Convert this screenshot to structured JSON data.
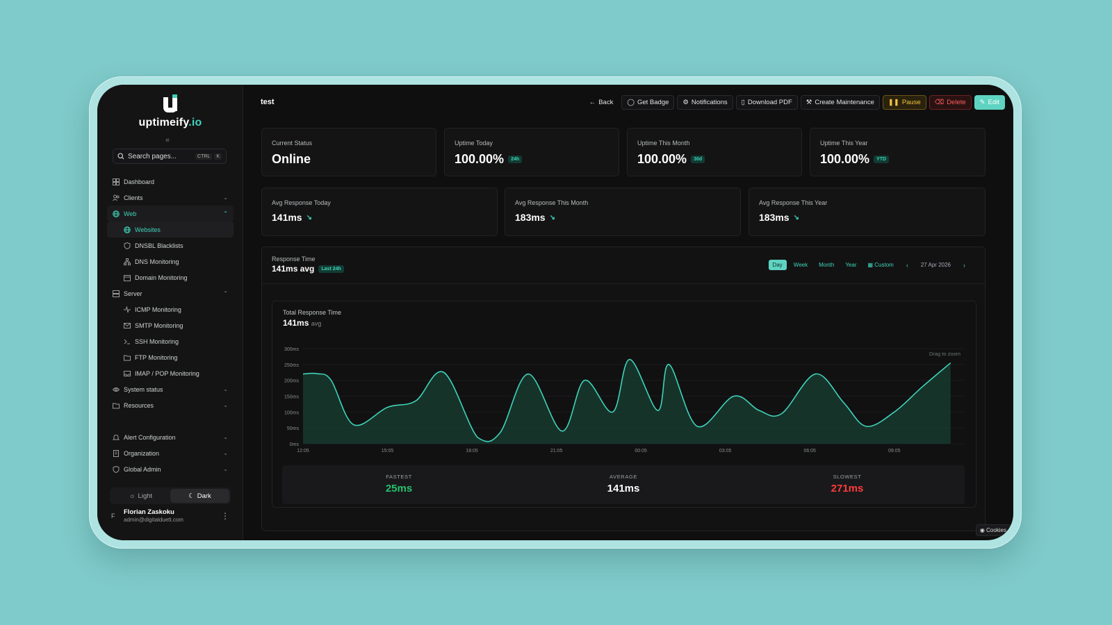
{
  "brand": {
    "name": "uptimeify",
    "tld": ".io"
  },
  "sidebar": {
    "collapse_glyph": "«",
    "search": {
      "placeholder": "Search pages...",
      "kbd1": "CTRL",
      "kbd2": "K"
    },
    "items": [
      {
        "label": "Dashboard",
        "icon": "dashboard-icon"
      },
      {
        "label": "Clients",
        "icon": "users-icon"
      },
      {
        "label": "Web",
        "icon": "globe-icon"
      },
      {
        "label": "Websites",
        "icon": "globe-icon"
      },
      {
        "label": "DNSBL Blacklists",
        "icon": "shield-icon"
      },
      {
        "label": "DNS Monitoring",
        "icon": "network-icon"
      },
      {
        "label": "Domain Monitoring",
        "icon": "calendar-icon"
      },
      {
        "label": "Server",
        "icon": "server-icon"
      },
      {
        "label": "ICMP Monitoring",
        "icon": "pulse-icon"
      },
      {
        "label": "SMTP Monitoring",
        "icon": "mail-icon"
      },
      {
        "label": "SSH Monitoring",
        "icon": "terminal-icon"
      },
      {
        "label": "FTP Monitoring",
        "icon": "folder-icon"
      },
      {
        "label": "IMAP / POP Monitoring",
        "icon": "inbox-icon"
      },
      {
        "label": "System status",
        "icon": "eye-icon"
      },
      {
        "label": "Resources",
        "icon": "folder-icon"
      },
      {
        "label": "Alert Configuration",
        "icon": "bell-icon"
      },
      {
        "label": "Organization",
        "icon": "building-icon"
      },
      {
        "label": "Global Admin",
        "icon": "shield-icon"
      }
    ],
    "theme": {
      "light": "Light",
      "dark": "Dark"
    },
    "user": {
      "initial": "F",
      "name": "Florian Zaskoku",
      "email": "admin@digitalduett.com"
    }
  },
  "header": {
    "title": "test",
    "buttons": {
      "back": "Back",
      "badge": "Get Badge",
      "notifications": "Notifications",
      "pdf": "Download PDF",
      "maintenance": "Create Maintenance",
      "pause": "Pause",
      "delete": "Delete",
      "edit": "Edit"
    }
  },
  "status_cards": [
    {
      "label": "Current Status",
      "value": "Online",
      "badge": ""
    },
    {
      "label": "Uptime Today",
      "value": "100.00%",
      "badge": "24h"
    },
    {
      "label": "Uptime This Month",
      "value": "100.00%",
      "badge": "30d"
    },
    {
      "label": "Uptime This Year",
      "value": "100.00%",
      "badge": "YTD"
    }
  ],
  "response_cards": [
    {
      "label": "Avg Response Today",
      "value": "141ms"
    },
    {
      "label": "Avg Response This Month",
      "value": "183ms"
    },
    {
      "label": "Avg Response This Year",
      "value": "183ms"
    }
  ],
  "response_time": {
    "label": "Response Time",
    "value": "141ms avg",
    "badge": "Last 24h",
    "ranges": [
      "Day",
      "Week",
      "Month",
      "Year",
      "Custom"
    ],
    "active_range": "Day",
    "date": "27 Apr 2026"
  },
  "chart_panel": {
    "title": "Total Response Time",
    "value": "141ms",
    "value_suffix": "avg",
    "hint": "Drag to zoom"
  },
  "chart_data": {
    "type": "area",
    "title": "Total Response Time",
    "xlabel": "",
    "ylabel": "",
    "ylim": [
      0,
      300
    ],
    "y_ticks": [
      "0ms",
      "50ms",
      "100ms",
      "150ms",
      "200ms",
      "250ms",
      "300ms"
    ],
    "x_ticks": [
      "12:05",
      "15:05",
      "18:05",
      "21:05",
      "00:05",
      "03:05",
      "06:05",
      "09:05"
    ],
    "x_hours": [
      0,
      0.5,
      1.0,
      1.8,
      3.0,
      4.0,
      5.0,
      6.2,
      7.0,
      8.0,
      9.2,
      10.0,
      11.0,
      11.6,
      12.6,
      13.0,
      14.0,
      15.3,
      16.2,
      17.0,
      18.2,
      19.2,
      20.0,
      21.0,
      22.0,
      23.0
    ],
    "series": [
      {
        "values": [
          220,
          221,
          200,
          60,
          115,
          135,
          225,
          20,
          35,
          220,
          40,
          200,
          100,
          266,
          105,
          250,
          55,
          150,
          105,
          95,
          220,
          130,
          55,
          100,
          180,
          255
        ]
      }
    ],
    "color": "#3fd3b9"
  },
  "stats": [
    {
      "label": "FASTEST",
      "value": "25ms",
      "color": "#25c26e"
    },
    {
      "label": "AVERAGE",
      "value": "141ms",
      "color": "#ffffff"
    },
    {
      "label": "SLOWEST",
      "value": "271ms",
      "color": "#ff3b3b"
    }
  ],
  "cookies": "Cookies"
}
